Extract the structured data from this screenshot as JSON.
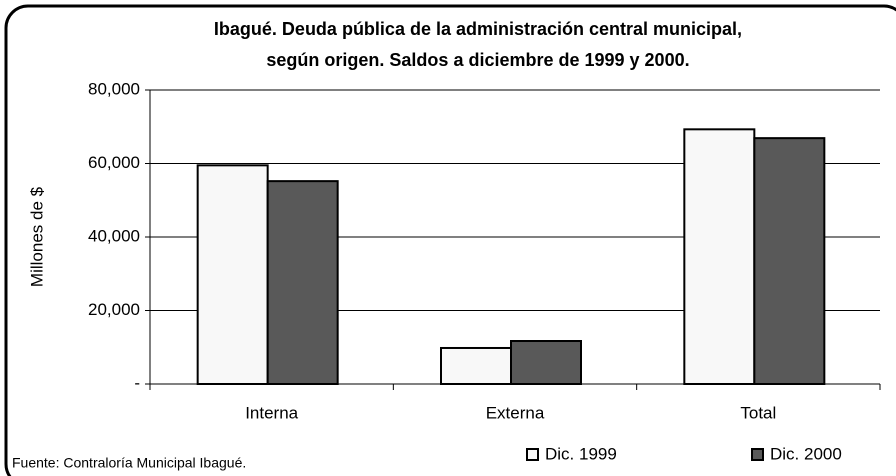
{
  "chart_data": {
    "type": "bar",
    "title": [
      "Ibagué. Deuda pública de la administración central municipal,",
      "según origen. Saldos a diciembre de 1999 y 2000."
    ],
    "ylabel": "Millones de $",
    "categories": [
      "Interna",
      "Externa",
      "Total"
    ],
    "series": [
      {
        "name": "Dic. 1999",
        "color": "#f8f8f8",
        "values": [
          59500,
          9800,
          69300
        ]
      },
      {
        "name": "Dic. 2000",
        "color": "#595959",
        "values": [
          55200,
          11700,
          66900
        ]
      }
    ],
    "ylim": [
      0,
      80000
    ],
    "yticks": [
      {
        "value": 0,
        "label": "-"
      },
      {
        "value": 20000,
        "label": "20,000"
      },
      {
        "value": 40000,
        "label": "40,000"
      },
      {
        "value": 60000,
        "label": "60,000"
      },
      {
        "value": 80000,
        "label": "80,000"
      }
    ],
    "grid": true,
    "legend": "bottom",
    "source": "Fuente: Contraloría Municipal Ibagué."
  }
}
